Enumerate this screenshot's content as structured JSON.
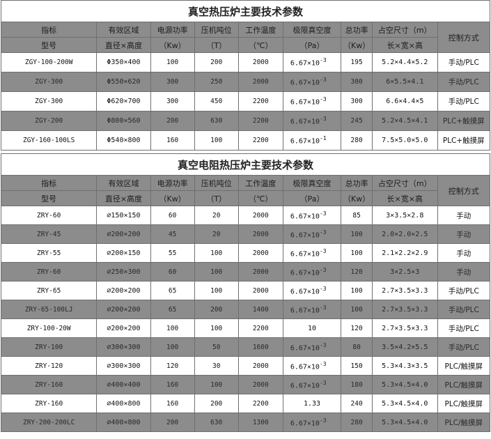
{
  "table1": {
    "title": "真空热压炉主要技术参数",
    "header_top": [
      "指标",
      "有效区域",
      "电源功率",
      "压机吨位",
      "工作温度",
      "极限真空度",
      "总功率",
      "占空尺寸（m）",
      "控制方式"
    ],
    "header_bottom": [
      "型号",
      "直径×高度",
      "（Kw）",
      "（T）",
      "（℃）",
      "（Pa）",
      "（Kw）",
      "长×宽×高"
    ],
    "rows": [
      {
        "model": "ZGY-100-200W",
        "area": "Φ350×400",
        "power": "100",
        "tonnage": "200",
        "temp": "2000",
        "vac_base": "6.67×10",
        "vac_exp": "-3",
        "total": "195",
        "size": "5.2×4.4×5.2",
        "control": "手动/PLC"
      },
      {
        "model": "ZGY-300",
        "area": "Φ550×620",
        "power": "300",
        "tonnage": "250",
        "temp": "2000",
        "vac_base": "6.67×10",
        "vac_exp": "-3",
        "total": "300",
        "size": "6×5.5×4.1",
        "control": "手动/PLC"
      },
      {
        "model": "ZGY-300",
        "area": "Φ620×700",
        "power": "300",
        "tonnage": "450",
        "temp": "2200",
        "vac_base": "6.67×10",
        "vac_exp": "-3",
        "total": "300",
        "size": "6.6×4.4×5",
        "control": "手动/PLC"
      },
      {
        "model": "ZGY-200",
        "area": "Φ800×560",
        "power": "200",
        "tonnage": "630",
        "temp": "2200",
        "vac_base": "6.67×10",
        "vac_exp": "-3",
        "total": "245",
        "size": "5.2×4.5×4.1",
        "control": "PLC+触摸屏"
      },
      {
        "model": "ZGY-160-100LS",
        "area": "Φ540×800",
        "power": "160",
        "tonnage": "100",
        "temp": "2200",
        "vac_base": "6.67×10",
        "vac_exp": "-1",
        "total": "280",
        "size": "7.5×5.0×5.0",
        "control": "PLC+触摸屏"
      }
    ]
  },
  "table2": {
    "title": "真空电阻热压炉主要技术参数",
    "header_top": [
      "指标",
      "有效区域",
      "电源功率",
      "压机吨位",
      "工作温度",
      "极限真空度",
      "总功率",
      "占空尺寸（m）",
      "控制方式"
    ],
    "header_bottom": [
      "型号",
      "直径×高度",
      "（Kw）",
      "（T）",
      "（℃）",
      "（Pa）",
      "（Kw）",
      "长×宽×高"
    ],
    "rows": [
      {
        "model": "ZRY-60",
        "area": "∅150×150",
        "power": "60",
        "tonnage": "20",
        "temp": "2000",
        "vac_base": "6.67×10",
        "vac_exp": "-3",
        "total": "85",
        "size": "3×3.5×2.8",
        "control": "手动"
      },
      {
        "model": "ZRY-45",
        "area": "∅200×200",
        "power": "45",
        "tonnage": "20",
        "temp": "2000",
        "vac_base": "6.67×10",
        "vac_exp": "-3",
        "total": "100",
        "size": "2.0×2.0×2.5",
        "control": "手动"
      },
      {
        "model": "ZRY-55",
        "area": "∅200×150",
        "power": "55",
        "tonnage": "100",
        "temp": "2000",
        "vac_base": "6.67×10",
        "vac_exp": "-3",
        "total": "100",
        "size": "2.1×2.2×2.9",
        "control": "手动"
      },
      {
        "model": "ZRY-60",
        "area": "∅250×300",
        "power": "60",
        "tonnage": "100",
        "temp": "2000",
        "vac_base": "6.67×10",
        "vac_exp": "-3",
        "total": "120",
        "size": "3×2.5×3",
        "control": "手动"
      },
      {
        "model": "ZRY-65",
        "area": "∅200×200",
        "power": "65",
        "tonnage": "100",
        "temp": "2000",
        "vac_base": "6.67×10",
        "vac_exp": "-3",
        "total": "100",
        "size": "2.7×3.5×3.3",
        "control": "手动/PLC"
      },
      {
        "model": "ZRY-65-100LJ",
        "area": "∅200×200",
        "power": "65",
        "tonnage": "200",
        "temp": "1400",
        "vac_base": "6.67×10",
        "vac_exp": "-3",
        "total": "100",
        "size": "2.7×3.5×3.3",
        "control": "手动/PLC"
      },
      {
        "model": "ZRY-100-20W",
        "area": "∅200×200",
        "power": "100",
        "tonnage": "100",
        "temp": "2200",
        "vac_base": "10",
        "vac_exp": "",
        "total": "120",
        "size": "2.7×3.5×3.3",
        "control": "手动/PLC"
      },
      {
        "model": "ZRY-100",
        "area": "∅300×300",
        "power": "100",
        "tonnage": "50",
        "temp": "1600",
        "vac_base": "6.67×10",
        "vac_exp": "-3",
        "total": "80",
        "size": "3.5×4.2×5.5",
        "control": "手动/PLC"
      },
      {
        "model": "ZRY-120",
        "area": "∅300×300",
        "power": "120",
        "tonnage": "30",
        "temp": "2000",
        "vac_base": "6.67×10",
        "vac_exp": "-3",
        "total": "150",
        "size": "5.3×4.3×3.5",
        "control": "PLC/触摸屏"
      },
      {
        "model": "ZRY-160",
        "area": "∅400×400",
        "power": "160",
        "tonnage": "100",
        "temp": "2000",
        "vac_base": "6.67×10",
        "vac_exp": "-3",
        "total": "180",
        "size": "5.3×4.5×4.0",
        "control": "PLC/触摸屏"
      },
      {
        "model": "ZRY-160",
        "area": "∅400×800",
        "power": "160",
        "tonnage": "200",
        "temp": "2200",
        "vac_base": "1.33",
        "vac_exp": "",
        "total": "240",
        "size": "5.3×4.5×4.0",
        "control": "PLC/触摸屏"
      },
      {
        "model": "ZRY-200-200LC",
        "area": "∅400×800",
        "power": "200",
        "tonnage": "630",
        "temp": "1300",
        "vac_base": "6.67×10",
        "vac_exp": "-3",
        "total": "280",
        "size": "5.3×4.5×4.0",
        "control": "PLC/触摸屏"
      }
    ]
  },
  "colors": {
    "header_bg": "#8c8c8c",
    "alt_row_bg": "#8c8c8c",
    "row_bg": "#ffffff",
    "border": "#6f6f6f"
  }
}
